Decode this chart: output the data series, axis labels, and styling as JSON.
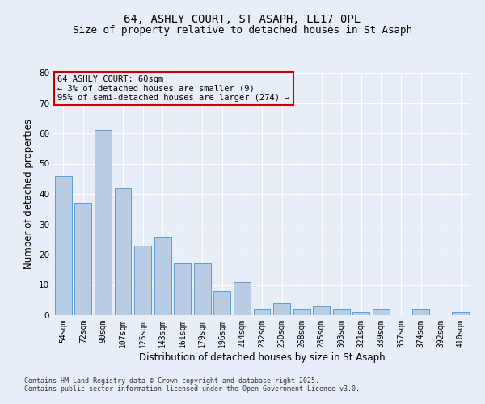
{
  "title1": "64, ASHLY COURT, ST ASAPH, LL17 0PL",
  "title2": "Size of property relative to detached houses in St Asaph",
  "xlabel": "Distribution of detached houses by size in St Asaph",
  "ylabel": "Number of detached properties",
  "categories": [
    "54sqm",
    "72sqm",
    "90sqm",
    "107sqm",
    "125sqm",
    "143sqm",
    "161sqm",
    "179sqm",
    "196sqm",
    "214sqm",
    "232sqm",
    "250sqm",
    "268sqm",
    "285sqm",
    "303sqm",
    "321sqm",
    "339sqm",
    "357sqm",
    "374sqm",
    "392sqm",
    "410sqm"
  ],
  "values": [
    46,
    37,
    61,
    42,
    23,
    26,
    17,
    17,
    8,
    11,
    2,
    4,
    2,
    3,
    2,
    1,
    2,
    0,
    2,
    0,
    1
  ],
  "bar_color": "#b8cce4",
  "bar_edge_color": "#5b9bd5",
  "background_color": "#e8eef8",
  "grid_color": "#ffffff",
  "annotation_box_color": "#cc0000",
  "annotation_text": "64 ASHLY COURT: 60sqm\n← 3% of detached houses are smaller (9)\n95% of semi-detached houses are larger (274) →",
  "ylim": [
    0,
    80
  ],
  "yticks": [
    0,
    10,
    20,
    30,
    40,
    50,
    60,
    70,
    80
  ],
  "footer1": "Contains HM Land Registry data © Crown copyright and database right 2025.",
  "footer2": "Contains public sector information licensed under the Open Government Licence v3.0.",
  "title_fontsize": 10,
  "subtitle_fontsize": 9,
  "tick_fontsize": 7,
  "label_fontsize": 8.5,
  "footer_fontsize": 6,
  "ann_fontsize": 7.5
}
